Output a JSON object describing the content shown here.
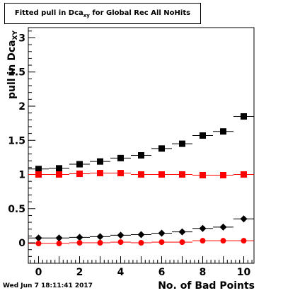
{
  "window": {
    "timestamp": "Wed Jun  7 18:11:41 2017"
  },
  "chart_data": {
    "type": "scatter",
    "title_main": "Fitted pull in Dca",
    "title_sub": "xy",
    "title_tail": " for Global Rec All NoHits",
    "ylabel_main": "pull in Dca",
    "ylabel_sub": "XY",
    "xlabel": "No. of Bad Points",
    "xlim": [
      -0.5,
      10.5
    ],
    "ylim": [
      -0.3,
      3.15
    ],
    "x_ticks": [
      0,
      2,
      4,
      6,
      8,
      10
    ],
    "x_tick_labels": [
      "0",
      "2",
      "4",
      "6",
      "8",
      "10"
    ],
    "y_ticks": [
      0,
      0.5,
      1,
      1.5,
      2,
      2.5,
      3
    ],
    "y_tick_labels": [
      "0",
      "0.5",
      "1",
      "1.5",
      "2",
      "2.5",
      "3"
    ],
    "grid": false,
    "x": [
      0,
      1,
      2,
      3,
      4,
      5,
      6,
      7,
      8,
      9,
      10
    ],
    "series": [
      {
        "marker": "square",
        "color": "#000000",
        "values": [
          1.08,
          1.09,
          1.15,
          1.19,
          1.24,
          1.28,
          1.38,
          1.45,
          1.57,
          1.63,
          1.85
        ]
      },
      {
        "marker": "square",
        "color": "#ff0000",
        "values": [
          1.0,
          1.0,
          1.01,
          1.02,
          1.02,
          1.0,
          1.0,
          1.0,
          0.99,
          0.99,
          1.0
        ]
      },
      {
        "marker": "diamond",
        "color": "#000000",
        "values": [
          0.07,
          0.07,
          0.08,
          0.09,
          0.11,
          0.12,
          0.14,
          0.16,
          0.21,
          0.23,
          0.35
        ]
      },
      {
        "marker": "circle",
        "color": "#ff0000",
        "values": [
          -0.01,
          -0.01,
          0.0,
          0.0,
          0.01,
          0.0,
          0.01,
          0.01,
          0.03,
          0.03,
          0.03
        ]
      }
    ]
  }
}
